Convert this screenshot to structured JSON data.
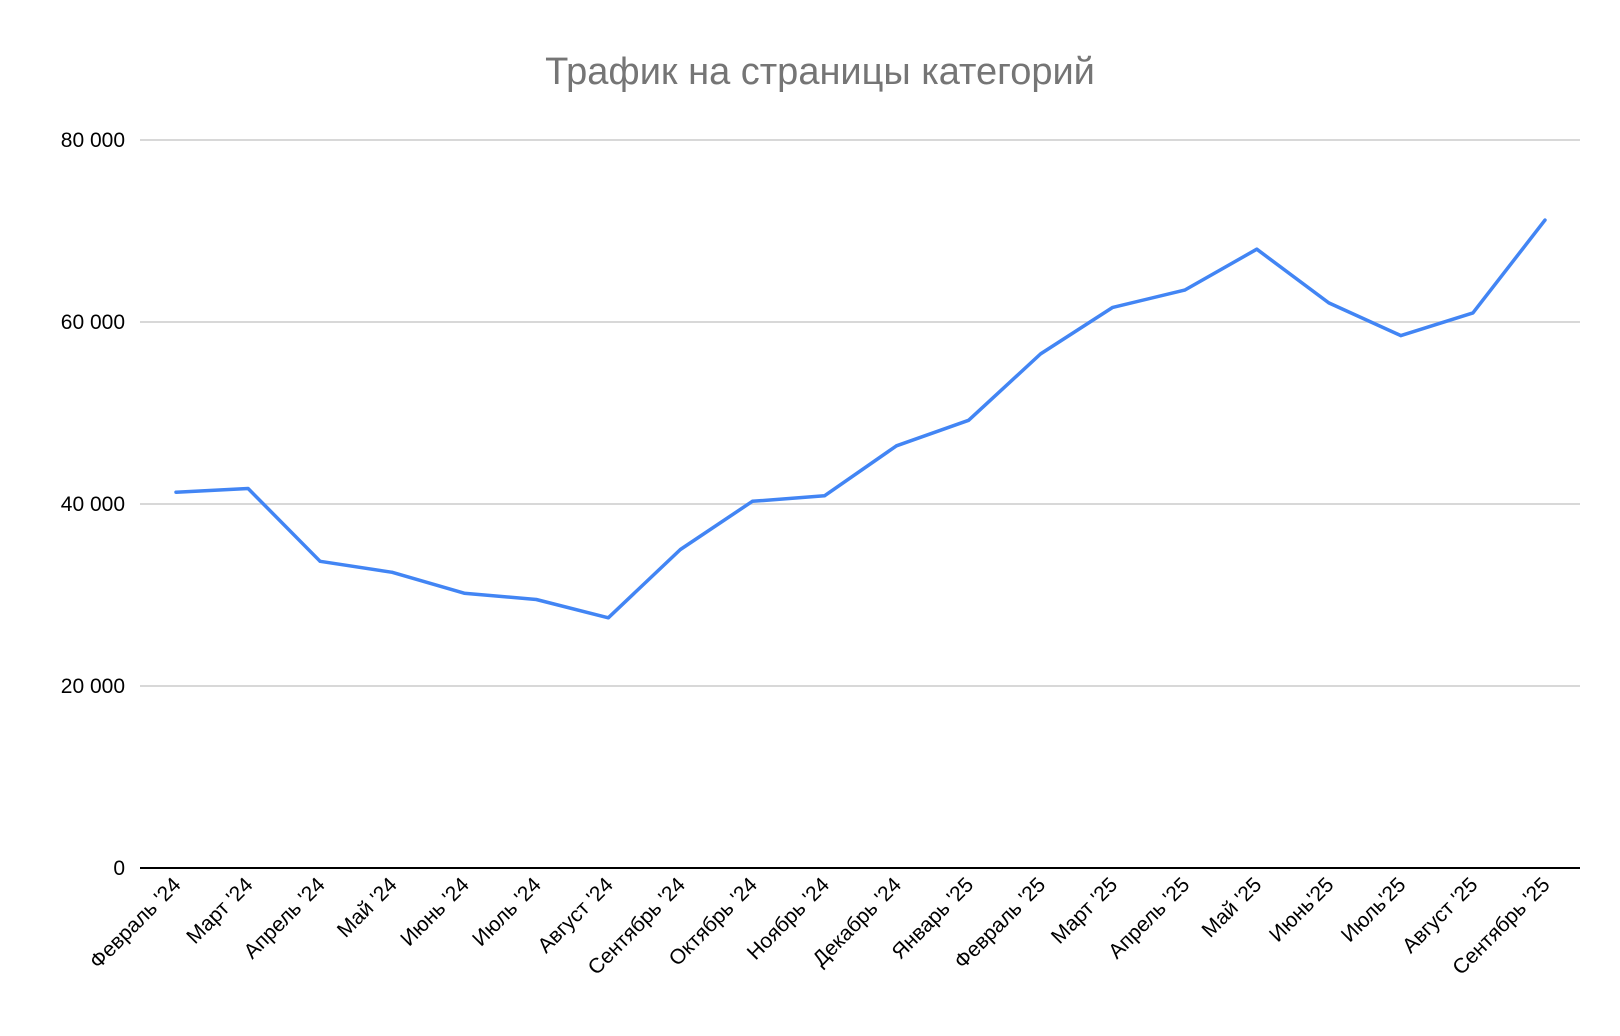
{
  "chart_data": {
    "type": "line",
    "title": "Трафик на страницы категорий",
    "xlabel": "",
    "ylabel": "",
    "categories": [
      "Февраль '24",
      "Март '24",
      "Апрель '24",
      "Май '24",
      "Июнь '24",
      "Июль '24",
      "Август '24",
      "Сентябрь '24",
      "Октябрь '24",
      "Ноябрь '24",
      "Декабрь '24",
      "Январь '25",
      "Февраль '25",
      "Март '25",
      "Апрель '25",
      "Май '25",
      "Июнь'25",
      "Июль'25",
      "Август '25",
      "Сентябрь '25"
    ],
    "series": [
      {
        "values": [
          41300,
          41700,
          33700,
          32500,
          30200,
          29500,
          27500,
          35000,
          40300,
          40900,
          46400,
          49200,
          56500,
          61600,
          63500,
          68000,
          62100,
          58500,
          61000,
          71200
        ],
        "color": "#4285f4"
      }
    ],
    "ylim": [
      0,
      80000
    ],
    "yticks": [
      0,
      20000,
      40000,
      60000,
      80000
    ],
    "ytick_labels": [
      "0",
      "20 000",
      "40 000",
      "60 000",
      "80 000"
    ],
    "grid": true,
    "legend": "none",
    "colors": {
      "gridline": "#cccccc",
      "axis": "#000000",
      "title": "#757575",
      "tick_text": "#000000"
    }
  }
}
